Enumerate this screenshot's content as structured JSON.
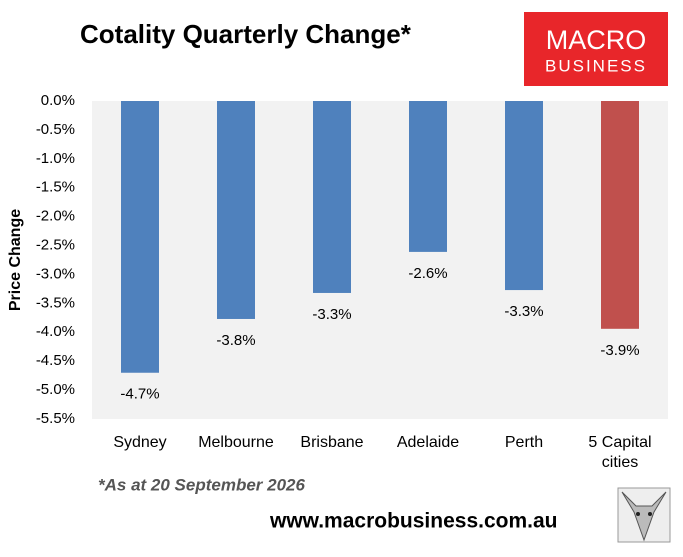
{
  "chart_data": {
    "type": "bar",
    "title": "Cotality Quarterly Change*",
    "y_label": "Price Change",
    "categories": [
      "Sydney",
      "Melbourne",
      "Brisbane",
      "Adelaide",
      "Perth",
      "5 Capital cities"
    ],
    "values": [
      -4.7,
      -3.77,
      -3.32,
      -2.61,
      -3.27,
      -3.94
    ],
    "value_labels": [
      "-4.7%",
      "-3.8%",
      "-3.3%",
      "-2.6%",
      "-3.3%",
      "-3.9%"
    ],
    "colors": [
      "#4f81bd",
      "#4f81bd",
      "#4f81bd",
      "#4f81bd",
      "#4f81bd",
      "#c0504d"
    ],
    "ylim": [
      0,
      -5.5
    ],
    "yticks": [
      {
        "value": 0,
        "label": "0.0%"
      },
      {
        "value": -0.5,
        "label": "-0.5%"
      },
      {
        "value": -1,
        "label": "-1.0%"
      },
      {
        "value": -1.5,
        "label": "-1.5%"
      },
      {
        "value": -2,
        "label": "-2.0%"
      },
      {
        "value": -2.5,
        "label": "-2.5%"
      },
      {
        "value": -3,
        "label": "-3.0%"
      },
      {
        "value": -3.5,
        "label": "-3.5%"
      },
      {
        "value": -4,
        "label": "-4.0%"
      },
      {
        "value": -4.5,
        "label": "-4.5%"
      },
      {
        "value": -5,
        "label": "-5.0%"
      },
      {
        "value": -5.5,
        "label": "-5.5%"
      }
    ],
    "grid": false,
    "note": "*As at 20 September 2026",
    "logo": {
      "line1": "MACRO",
      "line2": "BUSINESS"
    },
    "website": "www.macrobusiness.com.au"
  }
}
